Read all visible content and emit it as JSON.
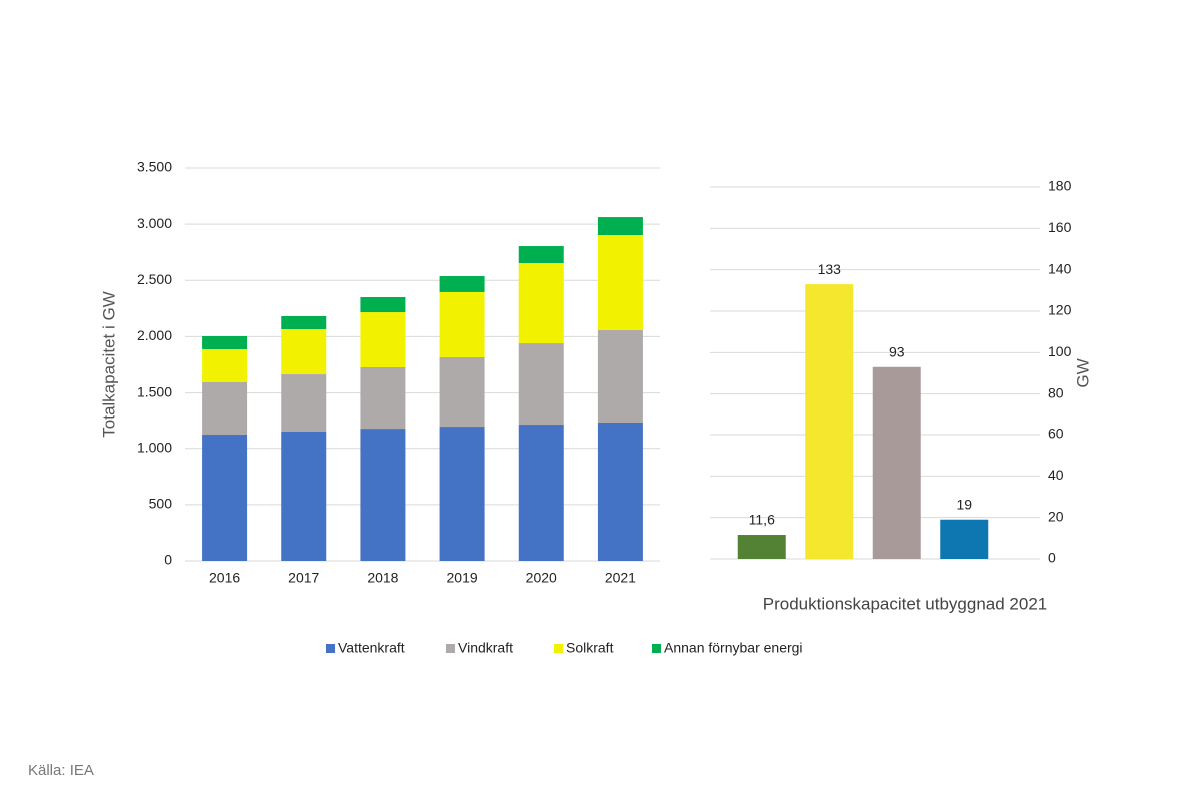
{
  "chart_data": [
    {
      "type": "bar",
      "stacked": true,
      "y_label": "Totalkapacitet i GW",
      "categories": [
        "2016",
        "2017",
        "2018",
        "2019",
        "2020",
        "2021"
      ],
      "series": [
        {
          "name": "Vattenkraft",
          "color": "#4472c4",
          "values": [
            1122,
            1149,
            1175,
            1193,
            1211,
            1229
          ]
        },
        {
          "name": "Vindkraft",
          "color": "#aeaaaa",
          "values": [
            472,
            516,
            553,
            624,
            730,
            828
          ]
        },
        {
          "name": "Solkraft",
          "color": "#f2f200",
          "values": [
            294,
            401,
            489,
            579,
            713,
            846
          ]
        },
        {
          "name": "Annan förnybar energi",
          "color": "#00b050",
          "values": [
            116,
            116,
            134,
            142,
            151,
            160
          ]
        }
      ],
      "ylim": [
        0,
        3500
      ],
      "yticks": [
        0,
        500,
        {
          "value": 1000,
          "label": "1.000"
        },
        {
          "value": 1500,
          "label": "1.500"
        },
        {
          "value": 2000,
          "label": "2.000"
        },
        {
          "value": 2500,
          "label": "2.500"
        },
        {
          "value": 3000,
          "label": "3.000"
        },
        {
          "value": 3500,
          "label": "3.500"
        }
      ],
      "grid": true,
      "legend": "bottom"
    },
    {
      "type": "bar",
      "x_label": "Produktionskapacitet utbyggnad 2021",
      "y_label": "GW",
      "y_axis_side": "right",
      "categories": [
        null,
        null,
        null,
        null
      ],
      "values": [
        11.6,
        133,
        93,
        19
      ],
      "value_labels": [
        "11,6",
        "133",
        "93",
        "19"
      ],
      "colors": [
        "#548235",
        "#f5e72e",
        "#a99a9a",
        "#0e76b0"
      ],
      "ylim": [
        0,
        180
      ],
      "yticks": [
        0,
        20,
        40,
        60,
        80,
        100,
        120,
        140,
        160,
        180
      ],
      "grid": true
    }
  ],
  "source": "Källa: IEA"
}
